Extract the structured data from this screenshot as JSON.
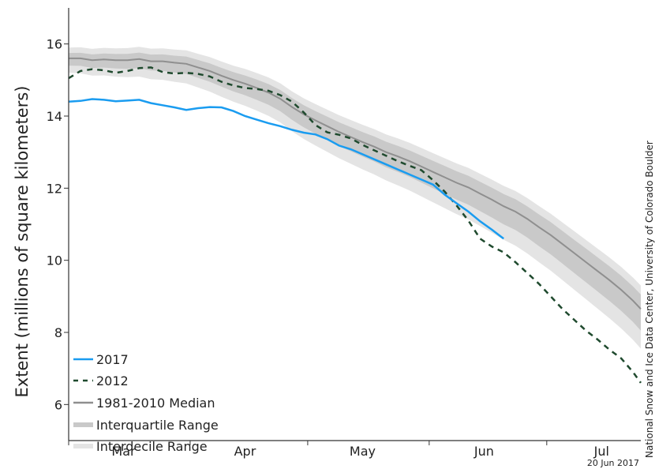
{
  "chart_data": {
    "type": "line",
    "ylabel": "Extent (millions of square kilometers)",
    "ylim": [
      5,
      17
    ],
    "xlim": [
      60,
      206
    ],
    "yticks": [
      "6",
      "8",
      "10",
      "12",
      "14",
      "16"
    ],
    "xticks": [
      {
        "label": "Mar",
        "day": 74
      },
      {
        "label": "Apr",
        "day": 105
      },
      {
        "label": "May",
        "day": 135
      },
      {
        "label": "Jun",
        "day": 166
      },
      {
        "label": "Jul",
        "day": 196
      }
    ],
    "month_boundaries": [
      60,
      91,
      121,
      152,
      182
    ],
    "credit": "National Snow and Ice Data Center, University of Colorado Boulder",
    "date_stamp": "20 Jun 2017",
    "grid": false,
    "legend_position": "bottom-left",
    "colors": {
      "s2017": "#1a9cf0",
      "s2012": "#1f4a2e",
      "median": "#8f8f8f",
      "iqr": "#c9c9c9",
      "idr": "#e4e4e4"
    },
    "series": [
      {
        "name": "2017",
        "x": [
          60,
          63,
          66,
          69,
          72,
          75,
          78,
          81,
          84,
          87,
          90,
          93,
          96,
          99,
          102,
          105,
          108,
          111,
          114,
          117,
          120,
          123,
          126,
          129,
          132,
          135,
          138,
          141,
          144,
          147,
          150,
          153,
          156,
          159,
          162,
          165,
          168,
          171
        ],
        "values": [
          14.4,
          14.42,
          14.47,
          14.45,
          14.41,
          14.43,
          14.45,
          14.36,
          14.3,
          14.24,
          14.17,
          14.22,
          14.25,
          14.24,
          14.14,
          14.0,
          13.9,
          13.8,
          13.72,
          13.62,
          13.54,
          13.49,
          13.36,
          13.18,
          13.08,
          12.94,
          12.8,
          12.66,
          12.52,
          12.38,
          12.24,
          12.1,
          11.82,
          11.58,
          11.35,
          11.08,
          10.85,
          10.6
        ]
      },
      {
        "name": "2012",
        "x": [
          60,
          63,
          66,
          69,
          72,
          75,
          78,
          81,
          84,
          87,
          90,
          93,
          96,
          99,
          102,
          105,
          108,
          111,
          114,
          117,
          120,
          123,
          126,
          129,
          132,
          135,
          138,
          141,
          144,
          147,
          150,
          153,
          156,
          159,
          162,
          165,
          168,
          171,
          174,
          177,
          180,
          183,
          186,
          189,
          192,
          195,
          198,
          201,
          204,
          206
        ],
        "values": [
          15.05,
          15.25,
          15.3,
          15.27,
          15.2,
          15.25,
          15.33,
          15.35,
          15.22,
          15.18,
          15.2,
          15.17,
          15.1,
          14.95,
          14.85,
          14.78,
          14.75,
          14.7,
          14.58,
          14.4,
          14.1,
          13.75,
          13.55,
          13.48,
          13.38,
          13.2,
          13.05,
          12.9,
          12.75,
          12.62,
          12.5,
          12.22,
          11.9,
          11.52,
          11.1,
          10.6,
          10.38,
          10.22,
          9.95,
          9.65,
          9.35,
          9.0,
          8.65,
          8.35,
          8.05,
          7.8,
          7.52,
          7.28,
          6.9,
          6.6
        ]
      },
      {
        "name": "1981-2010 Median",
        "x": [
          60,
          63,
          66,
          69,
          72,
          75,
          78,
          81,
          84,
          87,
          90,
          93,
          96,
          99,
          102,
          105,
          108,
          111,
          114,
          117,
          120,
          123,
          126,
          129,
          132,
          135,
          138,
          141,
          144,
          147,
          150,
          153,
          156,
          159,
          162,
          165,
          168,
          171,
          174,
          177,
          180,
          183,
          186,
          189,
          192,
          195,
          198,
          201,
          204,
          206
        ],
        "values": [
          15.6,
          15.6,
          15.55,
          15.57,
          15.55,
          15.55,
          15.58,
          15.52,
          15.52,
          15.48,
          15.45,
          15.35,
          15.25,
          15.12,
          15.0,
          14.9,
          14.78,
          14.65,
          14.48,
          14.25,
          14.05,
          13.88,
          13.72,
          13.56,
          13.42,
          13.28,
          13.15,
          13.0,
          12.88,
          12.75,
          12.6,
          12.45,
          12.3,
          12.15,
          12.02,
          11.85,
          11.68,
          11.5,
          11.35,
          11.15,
          10.92,
          10.7,
          10.45,
          10.2,
          9.95,
          9.7,
          9.45,
          9.18,
          8.88,
          8.65
        ]
      }
    ]
  }
}
